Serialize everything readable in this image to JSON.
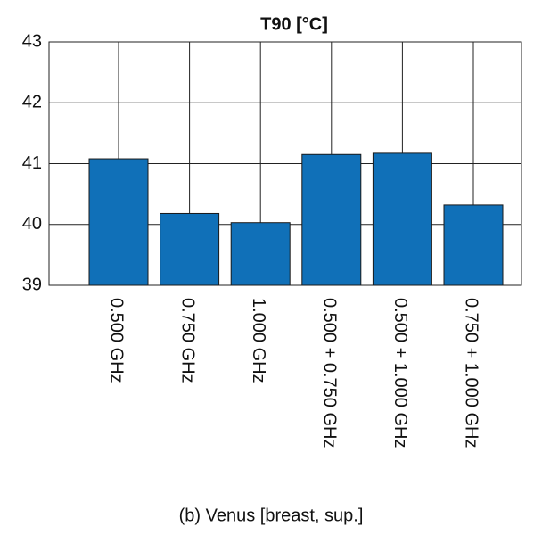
{
  "chart_data": {
    "type": "bar",
    "title": "T90 [°C]",
    "xlabel": "(b) Venus [breast, sup.]",
    "categories": [
      "0.500 GHz",
      "0.750 GHz",
      "1.000 GHz",
      "0.500 + 0.750 GHz",
      "0.500 + 1.000 GHz",
      "0.750 + 1.000 GHz"
    ],
    "values": [
      41.08,
      40.18,
      40.03,
      41.15,
      41.17,
      40.32
    ],
    "color": "#1070b8",
    "ylim": [
      39,
      43
    ],
    "yticks": [
      39,
      40,
      41,
      42,
      43
    ],
    "grid": true
  }
}
